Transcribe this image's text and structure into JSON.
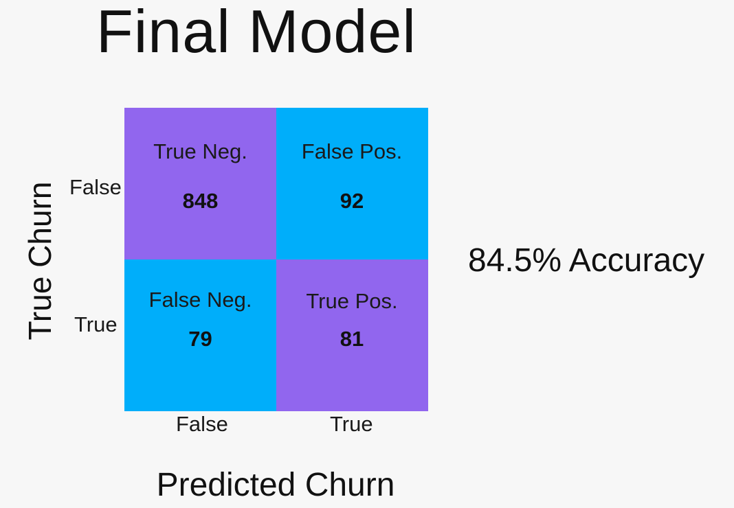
{
  "chart_data": {
    "type": "heatmap",
    "title": "Final Model",
    "xlabel": "Predicted Churn",
    "ylabel": "True Churn",
    "x_categories": [
      "False",
      "True"
    ],
    "y_categories": [
      "False",
      "True"
    ],
    "values": [
      [
        848,
        92
      ],
      [
        79,
        81
      ]
    ],
    "cell_labels": [
      [
        "True Neg.",
        "False Pos."
      ],
      [
        "False Neg.",
        "True Pos."
      ]
    ],
    "cell_colors": [
      [
        "#9166ee",
        "#00aefa"
      ],
      [
        "#00aefa",
        "#9166ee"
      ]
    ],
    "annotation": "84.5% Accuracy"
  },
  "colors": {
    "background": "#f7f7f7",
    "correct": "#9166ee",
    "incorrect": "#00aefa"
  }
}
